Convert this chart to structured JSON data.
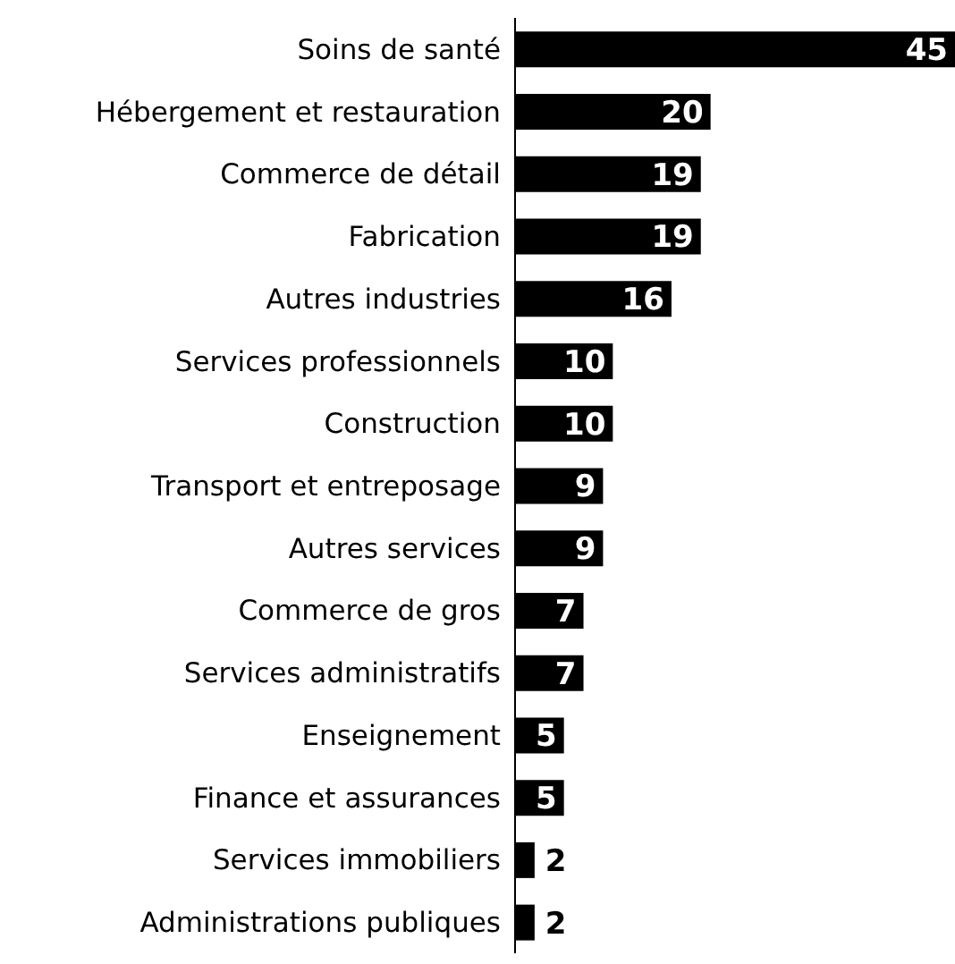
{
  "chart_data": {
    "type": "bar",
    "orientation": "horizontal",
    "categories": [
      "Soins de santé",
      "Hébergement et restauration",
      "Commerce de détail",
      "Fabrication",
      "Autres industries",
      "Services professionnels",
      "Construction",
      "Transport et entreposage",
      "Autres services",
      "Commerce de gros",
      "Services administratifs",
      "Enseignement",
      "Finance et assurances",
      "Services immobiliers",
      "Administrations publiques"
    ],
    "values": [
      45,
      20,
      19,
      19,
      16,
      10,
      10,
      9,
      9,
      7,
      7,
      5,
      5,
      2,
      2
    ],
    "color": "#000000",
    "data_labels": true
  }
}
